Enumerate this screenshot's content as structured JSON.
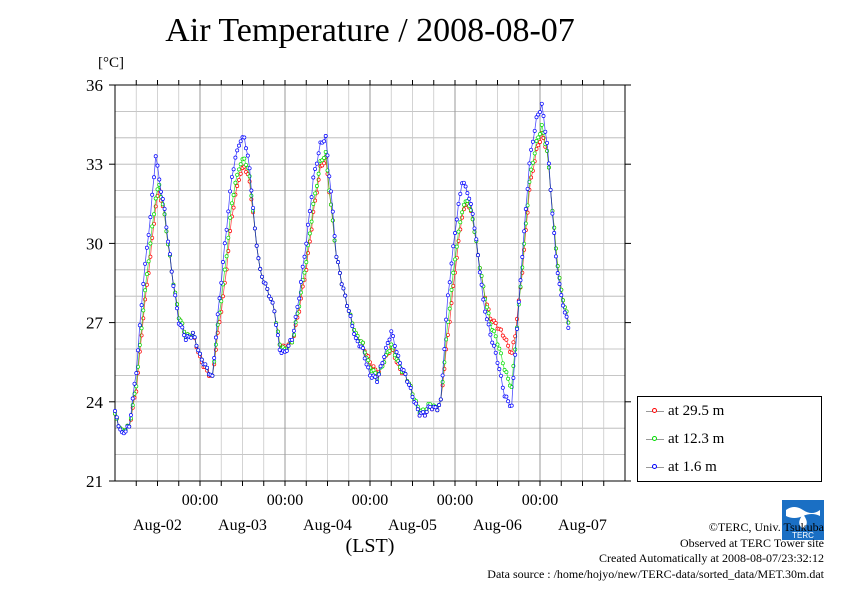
{
  "page": {
    "title": "Air Temperature / 2008-08-07",
    "unit_label": "[°C]",
    "x_unit_label": "(LST)"
  },
  "credits": {
    "copyright": "©TERC, Univ. Tsukuba",
    "observed": "Observed at TERC Tower site",
    "created": "Created Automatically at 2008-08-07/23:32:12",
    "source": "Data source : /home/hojyo/new/TERC-data/sorted_data/MET.30m.dat"
  },
  "logo": {
    "text": "TERC",
    "color": "#1a6fc4"
  },
  "legend": [
    {
      "label": "at 29.5 m",
      "color": "#ff0000"
    },
    {
      "label": "at 12.3 m",
      "color": "#00dd00"
    },
    {
      "label": "at 1.6 m",
      "color": "#0000ff"
    }
  ],
  "chart_data": {
    "type": "line",
    "title": "Air Temperature / 2008-08-07",
    "ylabel": "[°C]",
    "xlabel": "(LST)",
    "ylim": [
      21,
      36
    ],
    "yticks": [
      21,
      24,
      27,
      30,
      33,
      36
    ],
    "xlim": [
      0,
      144
    ],
    "x_unit": "hours since 2008-08-01 24:00 LST",
    "xticks": [
      24,
      48,
      72,
      96,
      120
    ],
    "xtick_labels": [
      "00:00",
      "00:00",
      "00:00",
      "00:00",
      "00:00"
    ],
    "day_labels": [
      "Aug-02",
      "Aug-03",
      "Aug-04",
      "Aug-05",
      "Aug-06",
      "Aug-07"
    ],
    "day_label_x": [
      12,
      36,
      60,
      84,
      108,
      132
    ],
    "grid": true,
    "legend_position": "outside-right-bottom",
    "series": [
      {
        "name": "at 29.5 m",
        "color": "#ff0000",
        "points": [
          [
            0,
            23.5
          ],
          [
            2,
            22.9
          ],
          [
            4,
            23.0
          ],
          [
            6,
            24.5
          ],
          [
            8,
            27.2
          ],
          [
            10,
            29.5
          ],
          [
            11.5,
            31.5
          ],
          [
            12.5,
            32.0
          ],
          [
            14,
            31.0
          ],
          [
            16,
            29.0
          ],
          [
            18,
            27.2
          ],
          [
            20,
            26.5
          ],
          [
            22,
            26.6
          ],
          [
            24,
            25.6
          ],
          [
            26,
            25.2
          ],
          [
            27.5,
            24.9
          ],
          [
            29,
            26.5
          ],
          [
            31,
            28.5
          ],
          [
            33,
            31.0
          ],
          [
            35,
            32.5
          ],
          [
            36.5,
            33.0
          ],
          [
            38,
            32.3
          ],
          [
            39.5,
            30.5
          ],
          [
            41,
            29.0
          ],
          [
            43,
            28.2
          ],
          [
            45,
            27.5
          ],
          [
            46.5,
            26.2
          ],
          [
            48,
            26.0
          ],
          [
            50,
            26.3
          ],
          [
            52,
            27.5
          ],
          [
            54,
            29.0
          ],
          [
            56,
            31.2
          ],
          [
            58,
            32.8
          ],
          [
            59.5,
            33.2
          ],
          [
            61,
            31.5
          ],
          [
            62.5,
            29.5
          ],
          [
            64,
            28.5
          ],
          [
            66,
            27.5
          ],
          [
            68,
            26.5
          ],
          [
            70,
            26.2
          ],
          [
            72,
            25.5
          ],
          [
            74,
            25.0
          ],
          [
            76,
            25.6
          ],
          [
            78,
            26.0
          ],
          [
            80,
            25.4
          ],
          [
            82,
            25.0
          ],
          [
            84,
            24.3
          ],
          [
            86,
            23.6
          ],
          [
            87.5,
            23.5
          ],
          [
            89,
            23.8
          ],
          [
            91,
            23.8
          ],
          [
            92,
            24.0
          ],
          [
            94,
            26.5
          ],
          [
            96,
            29.0
          ],
          [
            98,
            31.0
          ],
          [
            99.5,
            31.6
          ],
          [
            101,
            31.0
          ],
          [
            102.5,
            29.5
          ],
          [
            104,
            28.3
          ],
          [
            106,
            27.2
          ],
          [
            108,
            26.8
          ],
          [
            110,
            26.5
          ],
          [
            112,
            25.8
          ],
          [
            113,
            26.5
          ],
          [
            115,
            29.0
          ],
          [
            117,
            32.0
          ],
          [
            119,
            33.5
          ],
          [
            120.5,
            34.2
          ],
          [
            122,
            33.5
          ],
          [
            123,
            32.0
          ],
          [
            124.5,
            29.8
          ],
          [
            126,
            28.2
          ],
          [
            128,
            27.0
          ]
        ]
      },
      {
        "name": "at 12.3 m",
        "color": "#00dd00",
        "points": [
          [
            0,
            23.5
          ],
          [
            2,
            22.9
          ],
          [
            4,
            23.0
          ],
          [
            6,
            24.7
          ],
          [
            8,
            27.5
          ],
          [
            10,
            30.0
          ],
          [
            11.5,
            31.8
          ],
          [
            12.5,
            32.2
          ],
          [
            14,
            31.0
          ],
          [
            16,
            29.0
          ],
          [
            18,
            27.2
          ],
          [
            20,
            26.5
          ],
          [
            22,
            26.6
          ],
          [
            24,
            25.7
          ],
          [
            26,
            25.3
          ],
          [
            27.5,
            24.9
          ],
          [
            29,
            26.8
          ],
          [
            31,
            29.0
          ],
          [
            33,
            31.5
          ],
          [
            35,
            32.9
          ],
          [
            36.5,
            33.3
          ],
          [
            38,
            32.5
          ],
          [
            39.5,
            30.5
          ],
          [
            41,
            29.0
          ],
          [
            43,
            28.2
          ],
          [
            45,
            27.5
          ],
          [
            46.5,
            26.2
          ],
          [
            48,
            25.9
          ],
          [
            50,
            26.3
          ],
          [
            52,
            27.7
          ],
          [
            54,
            29.3
          ],
          [
            56,
            31.5
          ],
          [
            58,
            33.0
          ],
          [
            59.5,
            33.4
          ],
          [
            61,
            31.5
          ],
          [
            62.5,
            29.5
          ],
          [
            64,
            28.5
          ],
          [
            66,
            27.5
          ],
          [
            68,
            26.5
          ],
          [
            70,
            26.2
          ],
          [
            72,
            25.3
          ],
          [
            74,
            24.9
          ],
          [
            76,
            25.6
          ],
          [
            78,
            26.1
          ],
          [
            80,
            25.5
          ],
          [
            82,
            25.0
          ],
          [
            84,
            24.3
          ],
          [
            86,
            23.7
          ],
          [
            87.5,
            23.6
          ],
          [
            89,
            23.9
          ],
          [
            91,
            23.8
          ],
          [
            92,
            24.0
          ],
          [
            94,
            27.0
          ],
          [
            96,
            29.5
          ],
          [
            98,
            31.2
          ],
          [
            99.5,
            31.7
          ],
          [
            101,
            31.0
          ],
          [
            102.5,
            29.5
          ],
          [
            104,
            28.3
          ],
          [
            106,
            27.0
          ],
          [
            108,
            26.2
          ],
          [
            110,
            25.3
          ],
          [
            112,
            24.5
          ],
          [
            113,
            26.0
          ],
          [
            115,
            29.2
          ],
          [
            117,
            32.3
          ],
          [
            119,
            33.8
          ],
          [
            120.5,
            34.5
          ],
          [
            122,
            33.5
          ],
          [
            123,
            32.0
          ],
          [
            124.5,
            29.8
          ],
          [
            126,
            28.2
          ],
          [
            128,
            27.0
          ]
        ]
      },
      {
        "name": "at 1.6 m",
        "color": "#0000ff",
        "points": [
          [
            0,
            23.6
          ],
          [
            2,
            22.8
          ],
          [
            4,
            23.0
          ],
          [
            6,
            25.2
          ],
          [
            8,
            28.5
          ],
          [
            10,
            31.0
          ],
          [
            11.5,
            33.4
          ],
          [
            12.5,
            32.4
          ],
          [
            14,
            31.2
          ],
          [
            16,
            29.0
          ],
          [
            18,
            27.0
          ],
          [
            20,
            26.4
          ],
          [
            22,
            26.6
          ],
          [
            24,
            25.7
          ],
          [
            26,
            25.3
          ],
          [
            27.5,
            24.9
          ],
          [
            29,
            27.2
          ],
          [
            31,
            30.0
          ],
          [
            33,
            32.5
          ],
          [
            35,
            33.8
          ],
          [
            36.5,
            34.1
          ],
          [
            38,
            32.8
          ],
          [
            39.5,
            30.5
          ],
          [
            41,
            29.0
          ],
          [
            43,
            28.2
          ],
          [
            45,
            27.5
          ],
          [
            46.5,
            26.0
          ],
          [
            48,
            25.8
          ],
          [
            50,
            26.4
          ],
          [
            52,
            28.0
          ],
          [
            54,
            30.0
          ],
          [
            56,
            32.5
          ],
          [
            58,
            33.7
          ],
          [
            59.5,
            34.0
          ],
          [
            61,
            32.0
          ],
          [
            62.5,
            29.5
          ],
          [
            64,
            28.5
          ],
          [
            66,
            27.5
          ],
          [
            68,
            26.3
          ],
          [
            70,
            26.0
          ],
          [
            72,
            25.0
          ],
          [
            74,
            24.8
          ],
          [
            76,
            25.8
          ],
          [
            78,
            26.6
          ],
          [
            80,
            25.7
          ],
          [
            82,
            25.0
          ],
          [
            84,
            24.2
          ],
          [
            86,
            23.6
          ],
          [
            87.5,
            23.5
          ],
          [
            89,
            23.8
          ],
          [
            91,
            23.8
          ],
          [
            92,
            24.0
          ],
          [
            94,
            28.0
          ],
          [
            96,
            30.5
          ],
          [
            98,
            32.3
          ],
          [
            99.5,
            32.0
          ],
          [
            101,
            31.2
          ],
          [
            102.5,
            29.5
          ],
          [
            104,
            27.8
          ],
          [
            106,
            26.6
          ],
          [
            108,
            25.5
          ],
          [
            110,
            24.3
          ],
          [
            112,
            23.8
          ],
          [
            113,
            25.8
          ],
          [
            115,
            29.6
          ],
          [
            117,
            33.0
          ],
          [
            119,
            34.7
          ],
          [
            120.5,
            35.3
          ],
          [
            122,
            33.8
          ],
          [
            123,
            32.0
          ],
          [
            124.5,
            29.5
          ],
          [
            126,
            28.0
          ],
          [
            128,
            26.8
          ]
        ]
      }
    ]
  }
}
